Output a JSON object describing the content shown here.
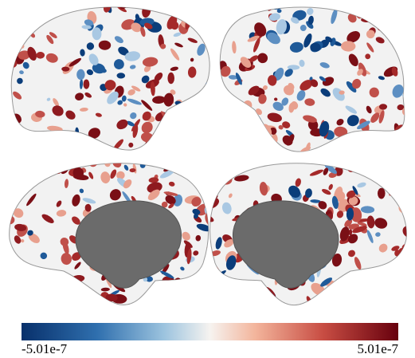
{
  "colorbar": {
    "min_label": "-5.01e-7",
    "max_label": "5.01e-7"
  }
}
